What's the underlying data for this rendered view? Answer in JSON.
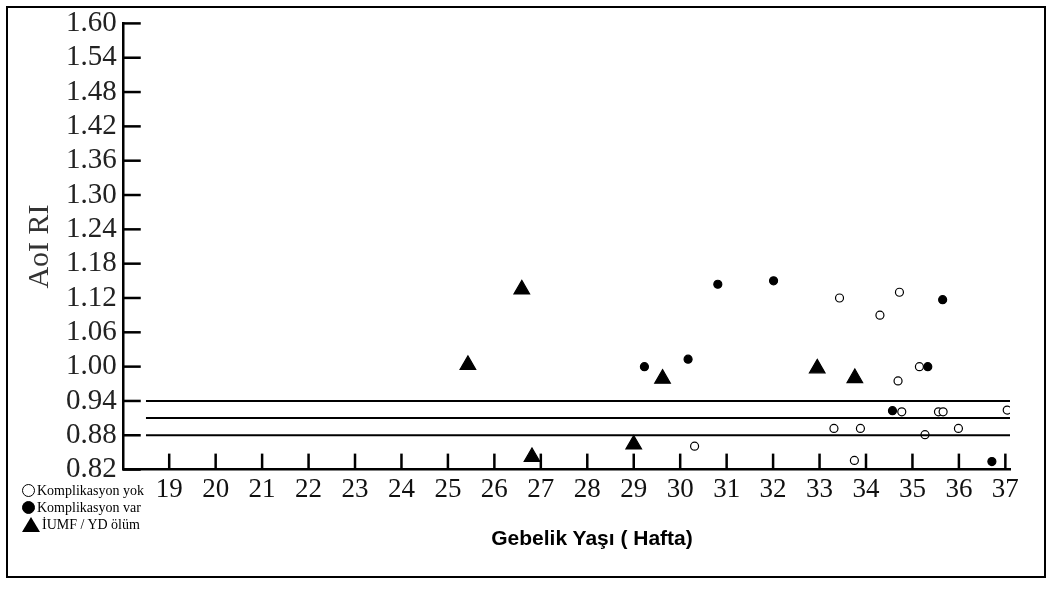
{
  "chart_data": {
    "type": "scatter",
    "xlabel": "Gebelik Yaşı ( Hafta)",
    "ylabel": "AoI RI",
    "xlim": [
      18,
      37.1
    ],
    "ylim": [
      0.82,
      1.6
    ],
    "xticks": [
      19,
      20,
      21,
      22,
      23,
      24,
      25,
      26,
      27,
      28,
      29,
      30,
      31,
      32,
      33,
      34,
      35,
      36,
      37
    ],
    "yticks": [
      {
        "value": 0.82,
        "label": "0.82"
      },
      0.88,
      0.94,
      {
        "value": 1.0,
        "label": "1.00"
      },
      1.06,
      1.12,
      1.18,
      1.24,
      {
        "value": 1.3,
        "label": "1.30"
      },
      1.36,
      1.42,
      1.48,
      1.54,
      {
        "value": 1.6,
        "label": "1.60"
      }
    ],
    "grid": false,
    "legend": "bottom left",
    "ref_lines": [
      {
        "axis": "y",
        "value": 0.94,
        "color": "#000000"
      },
      {
        "axis": "y",
        "value": 0.91,
        "color": "#000000"
      },
      {
        "axis": "y",
        "value": 0.88,
        "color": "#000000"
      }
    ],
    "series": [
      {
        "name": "Komplikasyon yok",
        "color": "#ffffff",
        "marker": "circle",
        "x": [
          33.43,
          34.72,
          34.3,
          35.15,
          34.69,
          34.77,
          35.56,
          35.66,
          37.04,
          33.31,
          33.88,
          35.27,
          35.99,
          33.75,
          30.31
        ],
        "values": [
          1.12,
          1.13,
          1.09,
          1.0,
          0.975,
          0.921,
          0.921,
          0.921,
          0.924,
          0.892,
          0.892,
          0.881,
          0.892,
          0.836,
          0.861
        ]
      },
      {
        "name": "Komplikasyon var",
        "color": "#000000",
        "marker": "circle",
        "x": [
          29.23,
          30.17,
          30.81,
          32.01,
          35.65,
          35.33,
          34.57,
          36.71
        ],
        "values": [
          1.0,
          1.013,
          1.144,
          1.15,
          1.117,
          1.0,
          0.923,
          0.834
        ]
      },
      {
        "name": "İUMF / YD ölüm",
        "color": "#000000",
        "marker": "triangle",
        "x": [
          25.43,
          26.59,
          29.62,
          26.81,
          29.0,
          32.95,
          33.76
        ],
        "values": [
          1.003,
          1.135,
          0.979,
          0.842,
          0.864,
          0.997,
          0.98
        ]
      }
    ]
  }
}
